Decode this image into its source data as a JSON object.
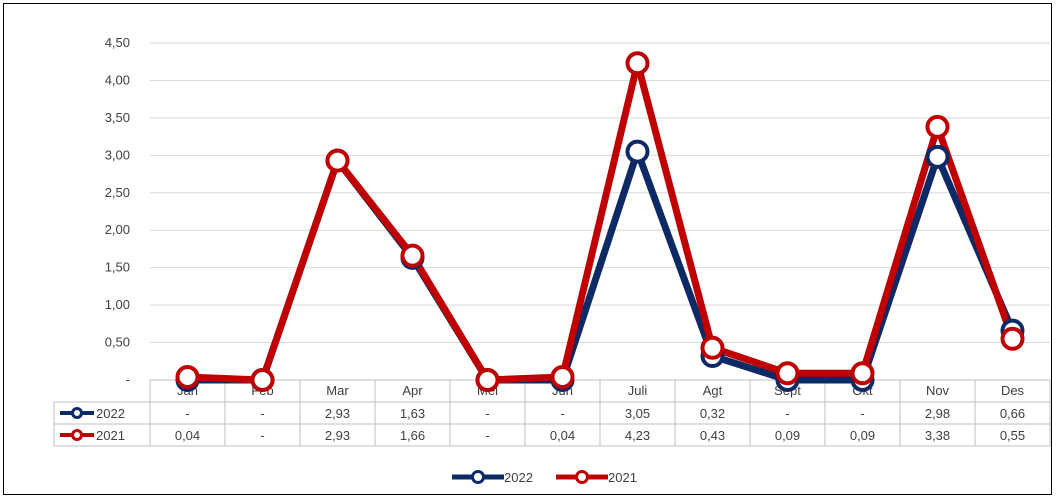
{
  "chart_data": {
    "type": "line",
    "categories": [
      "Jan",
      "Feb",
      "Mar",
      "Apr",
      "Mei",
      "Jun",
      "Juli",
      "Agt",
      "Sept",
      "Okt",
      "Nov",
      "Des"
    ],
    "series": [
      {
        "name": "2022",
        "color": "#0d2a66",
        "values": [
          0,
          0,
          2.93,
          1.63,
          0,
          0,
          3.05,
          0.32,
          0,
          0,
          2.98,
          0.66
        ],
        "table_values": [
          "-",
          "-",
          "2,93",
          "1,63",
          "-",
          "-",
          "3,05",
          "0,32",
          "-",
          "-",
          "2,98",
          "0,66"
        ]
      },
      {
        "name": "2021",
        "color": "#c00000",
        "values": [
          0.04,
          0,
          2.93,
          1.66,
          0,
          0.04,
          4.23,
          0.43,
          0.09,
          0.09,
          3.38,
          0.55
        ],
        "table_values": [
          "0,04",
          "-",
          "2,93",
          "1,66",
          "-",
          "0,04",
          "4,23",
          "0,43",
          "0,09",
          "0,09",
          "3,38",
          "0,55"
        ]
      }
    ],
    "y_ticks": [
      "-",
      "0,50",
      "1,00",
      "1,50",
      "2,00",
      "2,50",
      "3,00",
      "3,50",
      "4,00",
      "4,50"
    ],
    "ylim": [
      0,
      4.5
    ],
    "grid": true,
    "legend": "bottom",
    "data_table": true
  }
}
